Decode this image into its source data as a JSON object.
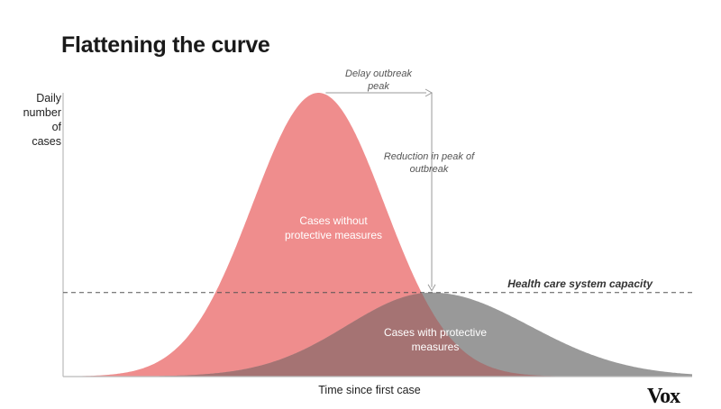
{
  "chart_data": {
    "type": "area",
    "title": "Flattening the curve",
    "ylabel": "Daily number of cases",
    "xlabel": "Time since first case",
    "ylabel_lines": [
      "Daily",
      "number of",
      "cases"
    ],
    "x_range": [
      0,
      100
    ],
    "y_range": [
      0,
      100
    ],
    "grid": false,
    "series": [
      {
        "label_lines": [
          "Cases without",
          "protective measures"
        ],
        "color": "#ef8d8d",
        "peak_x": 40.6,
        "peak_y": 100,
        "spread": 10.5
      },
      {
        "label_lines": [
          "Cases with protective",
          "measures"
        ],
        "color": "#999999",
        "peak_x": 58.6,
        "peak_y": 29.6,
        "spread_left": 13.5,
        "spread_right": 15.5
      }
    ],
    "reference_line": {
      "label": "Health care system capacity",
      "y": 29.6
    },
    "annotations": {
      "delay": [
        "Delay outbreak",
        "peak"
      ],
      "reduction": [
        "Reduction in peak of",
        "outbreak"
      ]
    }
  },
  "brand": {
    "logo": "Vox"
  },
  "colors": {
    "axis": "#bbbbbb",
    "text": "#222222",
    "overlap": "#a57373"
  }
}
